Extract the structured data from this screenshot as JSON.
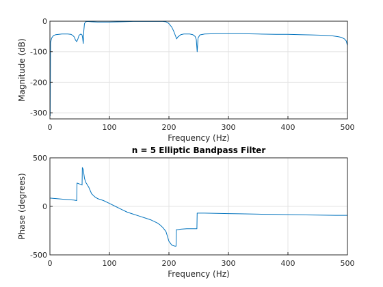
{
  "chart_data": [
    {
      "type": "line",
      "title": "",
      "xlabel": "Frequency (Hz)",
      "ylabel": "Magnitude (dB)",
      "xlim": [
        0,
        500
      ],
      "ylim": [
        -320,
        0
      ],
      "xticks": [
        0,
        100,
        200,
        300,
        400,
        500
      ],
      "yticks": [
        -300,
        -200,
        -100,
        0
      ],
      "grid": true,
      "color": "#0072bd",
      "series": [
        {
          "x": [
            0,
            0.5,
            1,
            3,
            6,
            10,
            15,
            20,
            25,
            30,
            35,
            38,
            41,
            43,
            45,
            47,
            49,
            52,
            54,
            55,
            56,
            57,
            58,
            60,
            63,
            70,
            80,
            100,
            120,
            140,
            160,
            180,
            190,
            195,
            198,
            200,
            205,
            208,
            211,
            213,
            215,
            220,
            225,
            230,
            235,
            240,
            244,
            246,
            247.5,
            249,
            252,
            260,
            280,
            300,
            320,
            350,
            380,
            400,
            420,
            440,
            460,
            475,
            485,
            490,
            495,
            498,
            500
          ],
          "y": [
            -5,
            -310,
            -70,
            -55,
            -47,
            -44,
            -43,
            -42,
            -42,
            -42,
            -43,
            -46,
            -52,
            -62,
            -67,
            -58,
            -46,
            -42,
            -45,
            -55,
            -73,
            -30,
            -8,
            -2,
            -1,
            -2,
            -3,
            -3,
            -2,
            -1,
            -1,
            -1,
            -1,
            -2,
            -5,
            -8,
            -20,
            -33,
            -48,
            -58,
            -52,
            -44,
            -42,
            -42,
            -42,
            -44,
            -50,
            -60,
            -100,
            -55,
            -45,
            -42,
            -41,
            -41,
            -41,
            -42,
            -43,
            -43,
            -44,
            -45,
            -46,
            -48,
            -51,
            -53,
            -58,
            -65,
            -80
          ]
        }
      ]
    },
    {
      "type": "line",
      "title": "n = 5 Elliptic Bandpass Filter",
      "xlabel": "Frequency (Hz)",
      "ylabel": "Phase (degrees)",
      "xlim": [
        0,
        500
      ],
      "ylim": [
        -500,
        500
      ],
      "xticks": [
        0,
        100,
        200,
        300,
        400,
        500
      ],
      "yticks": [
        -500,
        0,
        500
      ],
      "grid": true,
      "color": "#0072bd",
      "series": [
        {
          "x": [
            0,
            10,
            20,
            30,
            40,
            45,
            45.5,
            50,
            54,
            54.5,
            56,
            58,
            60,
            65,
            70,
            75,
            80,
            90,
            100,
            110,
            120,
            130,
            140,
            150,
            160,
            170,
            180,
            185,
            190,
            195,
            200,
            205,
            210,
            212,
            212.5,
            215,
            220,
            230,
            240,
            245,
            247,
            247.5,
            250,
            260,
            280,
            300,
            320,
            350,
            380,
            400,
            420,
            450,
            480,
            500
          ],
          "y": [
            85,
            80,
            75,
            70,
            65,
            60,
            240,
            230,
            220,
            400,
            380,
            290,
            250,
            200,
            130,
            100,
            80,
            60,
            30,
            0,
            -30,
            -60,
            -80,
            -100,
            -120,
            -140,
            -170,
            -190,
            -220,
            -260,
            -360,
            -400,
            -410,
            -410,
            -240,
            -240,
            -235,
            -230,
            -230,
            -230,
            -230,
            -70,
            -70,
            -70,
            -72,
            -75,
            -77,
            -80,
            -83,
            -85,
            -87,
            -90,
            -92,
            -92
          ]
        }
      ]
    }
  ]
}
